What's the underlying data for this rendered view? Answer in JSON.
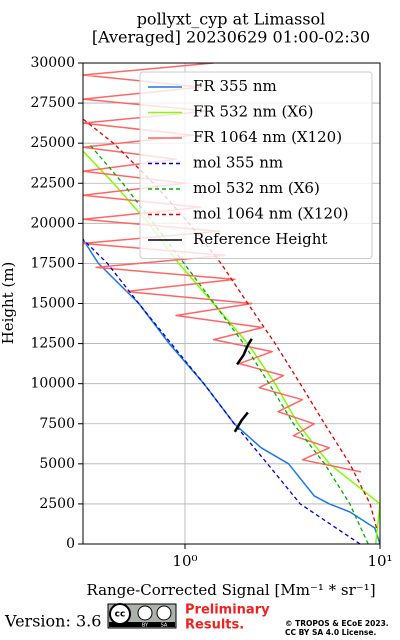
{
  "chart_data": {
    "type": "profile",
    "title": "pollyxt_cyp at Limassol",
    "subtitle": "[Averaged] 20230629 01:00-02:30",
    "xlabel": "Range-Corrected Signal [Mm⁻¹ * sr⁻¹]",
    "ylabel": "Height (m)",
    "xscale": "log",
    "xlim": [
      0.3,
      10
    ],
    "ylim": [
      0,
      30000
    ],
    "xticks": [
      {
        "value": 1,
        "label": "10⁰"
      },
      {
        "value": 10,
        "label": "10¹"
      }
    ],
    "yticks": [
      0,
      2500,
      5000,
      7500,
      10000,
      12500,
      15000,
      17500,
      20000,
      22500,
      25000,
      27500,
      30000
    ],
    "grid": true,
    "legend": "upper right",
    "series": [
      {
        "name": "FR 355 nm",
        "color": "#1f77e4",
        "dash": false,
        "x": [
          10,
          9.4,
          7.0,
          5.5,
          4.6,
          3.4,
          2.46,
          1.79,
          1.25,
          0.83,
          0.58,
          0.36,
          0.3
        ],
        "y": [
          0,
          1000,
          2000,
          2500,
          3000,
          5000,
          6000,
          7500,
          10000,
          12500,
          15000,
          17500,
          19000
        ]
      },
      {
        "name": "FR 532 nm (X6)",
        "color": "#7fff00",
        "dash": false,
        "x": [
          9.5,
          10,
          5.5,
          3.8,
          2.9,
          2.1,
          1.4,
          0.93,
          0.65,
          0.43,
          0.3
        ],
        "y": [
          0,
          2500,
          5000,
          7500,
          10000,
          12500,
          15000,
          17500,
          20000,
          22500,
          24500
        ]
      },
      {
        "name": "FR 1064 nm (X120)",
        "color": "#ff6666",
        "dash": false,
        "x": [
          8.0,
          4.0,
          5.5,
          3.6,
          4.6,
          3.0,
          4.0,
          2.4,
          3.2,
          1.9,
          2.8,
          1.4,
          2.5,
          0.9,
          2.2,
          0.5,
          1.8,
          0.35,
          1.6,
          0.3,
          1.5,
          0.3,
          1.2,
          0.3,
          1.0,
          0.3,
          0.9,
          0.3,
          1.1,
          0.3,
          1.3,
          0.3,
          1.2,
          0.3,
          1.4
        ],
        "y": [
          4500,
          5250,
          6000,
          6750,
          7500,
          8250,
          9000,
          9750,
          10500,
          11250,
          12000,
          12750,
          13500,
          14250,
          15000,
          15750,
          16500,
          17250,
          18000,
          18750,
          19500,
          20250,
          21000,
          21750,
          22500,
          23250,
          24000,
          24750,
          25500,
          26250,
          27000,
          27750,
          28500,
          29250,
          30000
        ]
      },
      {
        "name": "mol 355 nm",
        "color": "#0000cc",
        "dash": true,
        "x": [
          7.9,
          3.9,
          2.65,
          1.79,
          1.25,
          0.85,
          0.58,
          0.4,
          0.3
        ],
        "y": [
          0,
          2500,
          5000,
          7500,
          10000,
          12500,
          15000,
          17500,
          19000
        ]
      },
      {
        "name": "mol 532 nm (X6)",
        "color": "#00aa00",
        "dash": true,
        "x": [
          8.7,
          7.0,
          5.2,
          3.6,
          2.7,
          2.0,
          1.41,
          0.99,
          0.69,
          0.48,
          0.32
        ],
        "y": [
          0,
          2500,
          5000,
          7500,
          10000,
          12500,
          15000,
          17500,
          20000,
          22500,
          25000
        ]
      },
      {
        "name": "mol 1064 nm (X120)",
        "color": "#dd0000",
        "dash": true,
        "x": [
          9.6,
          8.9,
          7.0,
          5.2,
          3.9,
          2.9,
          2.1,
          1.53,
          1.05,
          0.69,
          0.43,
          0.3
        ],
        "y": [
          1000,
          2500,
          5000,
          7500,
          10000,
          12500,
          15000,
          17500,
          20000,
          22500,
          25000,
          26500
        ]
      },
      {
        "name": "Reference Height",
        "color": "#000000",
        "dash": false,
        "x": [
          1.8,
          1.95,
          2.1,
          null,
          1.85,
          2.0,
          2.1,
          2.2
        ],
        "y": [
          7000,
          7700,
          8200,
          null,
          11200,
          11800,
          12400,
          12800
        ]
      }
    ]
  },
  "footer": {
    "version": "Version: 3.6",
    "badge": [
      "BY",
      "SA"
    ],
    "status": [
      "Preliminary",
      "Results."
    ],
    "copyright": [
      "© TROPOS & ECoE 2023.",
      "CC BY SA 4.0 License."
    ]
  }
}
